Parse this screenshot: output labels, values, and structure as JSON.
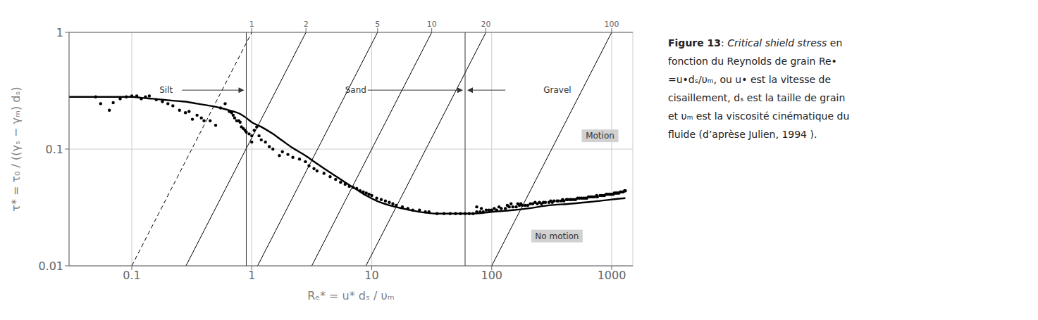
{
  "chart_data": {
    "type": "scatter",
    "log": true,
    "grid": true,
    "xlabel": "Rₑ* = u* dₛ / υₘ",
    "ylabel": "τ* = τ₀ / ((γₛ − γₘ) dₛ)",
    "xlim": [
      0.03,
      1500
    ],
    "ylim": [
      0.01,
      1.0
    ],
    "xticks": [
      0.1,
      1,
      10,
      100,
      1000
    ],
    "yticks": [
      0.01,
      0.1,
      1
    ],
    "x2lim": [
      0.03,
      1500
    ],
    "x2ticks": [
      {
        "value": 1,
        "label": "1"
      },
      {
        "value": 2.8284271247461903,
        "label": "2"
      },
      {
        "value": 11.180339887498949,
        "label": "5"
      },
      {
        "value": 31.622776601683793,
        "label": "10"
      },
      {
        "value": 89.44271909999159,
        "label": "20"
      },
      {
        "value": 1000,
        "label": "100"
      }
    ],
    "series": [
      {
        "type": "line",
        "color": "#000000",
        "line_style": "dashed",
        "x": [
          0.1,
          1
        ],
        "values": [
          0.01,
          1
        ]
      },
      {
        "type": "line",
        "color": "#000000",
        "line_style": "solid",
        "x": [
          0.28284271247461906,
          2.8284271247461903
        ],
        "values": [
          0.01,
          1
        ]
      },
      {
        "type": "line",
        "color": "#000000",
        "line_style": "solid",
        "x": [
          1.118033988749895,
          11.180339887498949
        ],
        "values": [
          0.01,
          1
        ]
      },
      {
        "type": "line",
        "color": "#000000",
        "line_style": "solid",
        "x": [
          3.1622776601683795,
          31.622776601683793
        ],
        "values": [
          0.01,
          1
        ]
      },
      {
        "type": "line",
        "color": "#000000",
        "line_style": "solid",
        "x": [
          8.94427190999916,
          89.44271909999159
        ],
        "values": [
          0.01,
          1
        ]
      },
      {
        "type": "line",
        "color": "#000000",
        "line_style": "solid",
        "x": [
          100,
          1000
        ],
        "values": [
          0.01,
          1
        ]
      },
      {
        "type": "line",
        "color": "#000000",
        "line_style": "solid",
        "x": [
          0.03,
          0.05,
          0.07,
          0.09,
          0.1,
          0.12,
          0.15,
          0.18,
          0.22,
          0.28,
          0.35,
          0.45,
          0.55,
          0.65,
          0.8,
          0.9,
          1.0,
          1.2,
          1.5,
          1.8,
          2.2,
          2.8,
          3.5,
          4.5,
          6.0,
          7.5,
          9.0,
          11.0,
          14.0,
          18.0,
          25.0,
          35.0,
          50.0,
          70.0,
          100.0,
          150.0,
          200.0,
          300.0,
          450.0,
          600.0,
          800.0,
          1000.0,
          1300.0
        ],
        "values": [
          0.28,
          0.28,
          0.28,
          0.28,
          0.28,
          0.275,
          0.27,
          0.265,
          0.26,
          0.255,
          0.245,
          0.235,
          0.225,
          0.215,
          0.2,
          0.185,
          0.17,
          0.155,
          0.135,
          0.118,
          0.102,
          0.088,
          0.075,
          0.063,
          0.052,
          0.045,
          0.04,
          0.036,
          0.033,
          0.031,
          0.029,
          0.028,
          0.028,
          0.028,
          0.029,
          0.03,
          0.031,
          0.033,
          0.034,
          0.035,
          0.036,
          0.037,
          0.038
        ]
      },
      {
        "type": "scatter",
        "color": "#000000",
        "marker": "circle",
        "x": [
          0.05,
          0.055,
          0.065,
          0.07,
          0.08,
          0.09,
          0.1,
          0.11,
          0.12,
          0.13,
          0.14,
          0.16,
          0.18,
          0.2,
          0.22,
          0.25,
          0.28,
          0.3,
          0.32,
          0.35,
          0.38,
          0.4,
          0.45,
          0.5,
          0.55,
          0.6,
          0.65,
          0.68,
          0.7,
          0.72,
          0.75,
          0.78,
          0.8,
          0.82,
          0.85,
          0.88,
          0.9,
          0.95,
          1.0,
          1.0,
          1.05,
          1.1,
          1.15,
          1.2,
          1.3,
          1.4,
          1.5,
          1.7,
          1.8,
          2.0,
          2.2,
          2.5,
          2.8,
          3.0,
          3.3,
          3.5,
          4.0,
          4.5,
          5.0,
          5.5,
          6.0,
          6.5,
          7.0,
          7.5,
          8.0,
          8.5,
          9.0,
          9.5,
          10.0,
          11.0,
          12.0,
          13.0,
          14.0,
          15.0,
          16.0,
          18.0,
          20.0,
          22.0,
          25.0,
          28.0,
          30.0,
          35.0,
          40.0,
          45.0,
          50.0,
          55.0,
          60.0,
          65.0,
          70.0,
          75.0,
          80.0,
          85.0,
          90.0,
          95.0,
          100.0,
          110.0,
          120.0,
          130.0,
          140.0,
          150.0,
          160.0,
          170.0,
          180.0,
          190.0,
          200.0,
          220.0,
          240.0,
          260.0,
          280.0,
          300.0,
          320.0,
          350.0,
          380.0,
          400.0,
          430.0,
          460.0,
          500.0,
          540.0,
          580.0,
          620.0,
          660.0,
          700.0,
          750.0,
          800.0,
          850.0,
          900.0,
          950.0,
          1000.0,
          1050.0,
          1100.0,
          1150.0,
          1200.0,
          1250.0,
          1300.0,
          75.0,
          82.0,
          105.0,
          115.0,
          135.0,
          145.0,
          165.0,
          175.0,
          210.0,
          230.0,
          250.0,
          270.0,
          310.0,
          330.0,
          360.0,
          390.0,
          420.0,
          450.0,
          480.0,
          520.0,
          560.0,
          600.0,
          640.0,
          680.0,
          720.0,
          760.0,
          820.0,
          870.0,
          920.0,
          980.0,
          1030.0,
          1080.0,
          1130.0,
          1180.0,
          1230.0,
          1280.0
        ],
        "values": [
          0.28,
          0.245,
          0.215,
          0.25,
          0.27,
          0.28,
          0.285,
          0.285,
          0.27,
          0.28,
          0.285,
          0.265,
          0.255,
          0.245,
          0.235,
          0.215,
          0.205,
          0.21,
          0.18,
          0.195,
          0.185,
          0.175,
          0.175,
          0.16,
          0.225,
          0.245,
          0.21,
          0.205,
          0.195,
          0.185,
          0.175,
          0.175,
          0.17,
          0.155,
          0.15,
          0.145,
          0.14,
          0.135,
          0.13,
          0.115,
          0.145,
          0.155,
          0.13,
          0.12,
          0.115,
          0.105,
          0.1,
          0.088,
          0.095,
          0.09,
          0.085,
          0.082,
          0.078,
          0.072,
          0.068,
          0.065,
          0.062,
          0.058,
          0.055,
          0.052,
          0.05,
          0.048,
          0.047,
          0.046,
          0.044,
          0.043,
          0.042,
          0.041,
          0.04,
          0.038,
          0.037,
          0.036,
          0.035,
          0.034,
          0.033,
          0.032,
          0.031,
          0.03,
          0.03,
          0.029,
          0.029,
          0.028,
          0.028,
          0.028,
          0.028,
          0.028,
          0.028,
          0.028,
          0.028,
          0.029,
          0.029,
          0.029,
          0.03,
          0.03,
          0.03,
          0.03,
          0.031,
          0.031,
          0.032,
          0.032,
          0.032,
          0.033,
          0.033,
          0.033,
          0.033,
          0.034,
          0.034,
          0.034,
          0.035,
          0.035,
          0.035,
          0.036,
          0.036,
          0.036,
          0.037,
          0.037,
          0.037,
          0.038,
          0.038,
          0.038,
          0.039,
          0.039,
          0.04,
          0.04,
          0.04,
          0.041,
          0.041,
          0.041,
          0.042,
          0.042,
          0.042,
          0.043,
          0.043,
          0.044,
          0.032,
          0.031,
          0.031,
          0.032,
          0.033,
          0.034,
          0.034,
          0.034,
          0.034,
          0.035,
          0.035,
          0.035,
          0.036,
          0.036,
          0.036,
          0.037,
          0.037,
          0.037,
          0.037,
          0.038,
          0.038,
          0.038,
          0.039,
          0.039,
          0.039,
          0.039,
          0.04,
          0.04,
          0.041,
          0.041,
          0.041,
          0.042,
          0.042,
          0.043,
          0.043,
          0.044
        ]
      }
    ],
    "reference_lines": [
      0.9,
      60.0
    ],
    "annotations": [
      {
        "text": "Silt",
        "x": 0.17,
        "y": 0.32,
        "arrow_to": 0.9
      },
      {
        "text": "Sand",
        "x": 6.0,
        "y": 0.32,
        "arrow_to": 60.0
      },
      {
        "text": "Gravel",
        "x": 270,
        "y": 0.32
      },
      {
        "text": "Motion",
        "x": 800,
        "y": 0.13,
        "box": true
      },
      {
        "text": "No motion",
        "x": 350,
        "y": 0.018,
        "box": true
      }
    ],
    "arrows": [
      {
        "x_from": 130,
        "x_to": 60.0,
        "y": 0.32
      }
    ],
    "caption_head": [
      "Figure 13",
      ": ",
      "Critical shield stress",
      " en"
    ],
    "caption_lines": [
      "fonction du Reynolds de grain Re•",
      "=u•dₛ/υₘ, ou u• est la vitesse de",
      "cisaillement, dₛ est la taille de grain",
      "et υₘ est la viscosité cinématique du",
      "fluide (d’aprèse Julien, 1994 )."
    ]
  }
}
